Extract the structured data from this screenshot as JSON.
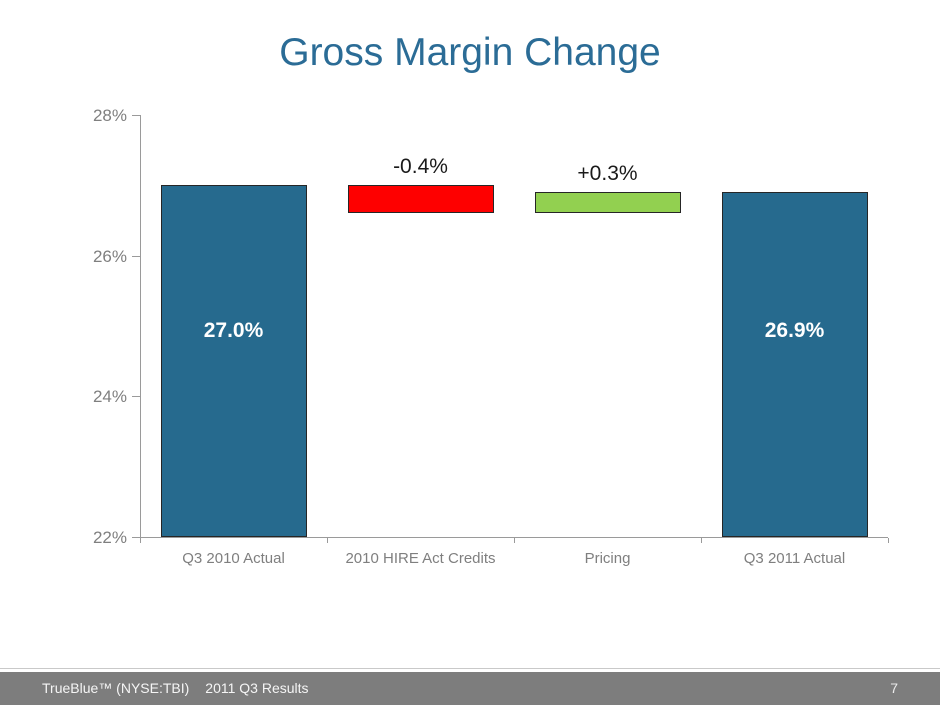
{
  "slide": {
    "title": "Gross Margin Change",
    "footer": {
      "company": "TrueBlue™ (NYSE:TBI)",
      "deck_label": "2011 Q3 Results",
      "page_number": "7"
    }
  },
  "colors": {
    "title_text": "#2B6C96",
    "bar_teal": "#266A8E",
    "bar_red": "#FE0000",
    "bar_green": "#92D050",
    "bar_border": "#262626",
    "axis": "#9A9A9A",
    "axis_text": "#7F7F7F",
    "footer_bg": "#7D7D7D",
    "value_label_text": "#FFFFFF",
    "delta_label_text": "#1A1A1A"
  },
  "chart_data": {
    "type": "bar",
    "subtype": "waterfall",
    "title": "Gross Margin Change",
    "xlabel": "",
    "ylabel": "",
    "ylim": [
      22,
      28
    ],
    "grid": false,
    "legend": false,
    "y_ticks": [
      {
        "value": 28,
        "label": "28%"
      },
      {
        "value": 26,
        "label": "26%"
      },
      {
        "value": 24,
        "label": "24%"
      },
      {
        "value": 22,
        "label": "22%"
      }
    ],
    "categories": [
      "Q3 2010 Actual",
      "2010 HIRE Act Credits",
      "Pricing",
      "Q3 2011 Actual"
    ],
    "bars": [
      {
        "category": "Q3 2010 Actual",
        "kind": "total",
        "start": 22.0,
        "end": 27.0,
        "value": 27.0,
        "label": "27.0%",
        "color_key": "bar_teal"
      },
      {
        "category": "2010 HIRE Act Credits",
        "kind": "decrease",
        "start": 27.0,
        "end": 26.6,
        "value": -0.4,
        "label": "-0.4%",
        "color_key": "bar_red"
      },
      {
        "category": "Pricing",
        "kind": "increase",
        "start": 26.6,
        "end": 26.9,
        "value": 0.3,
        "label": "+0.3%",
        "color_key": "bar_green"
      },
      {
        "category": "Q3 2011 Actual",
        "kind": "total",
        "start": 22.0,
        "end": 26.9,
        "value": 26.9,
        "label": "26.9%",
        "color_key": "bar_teal"
      }
    ]
  }
}
